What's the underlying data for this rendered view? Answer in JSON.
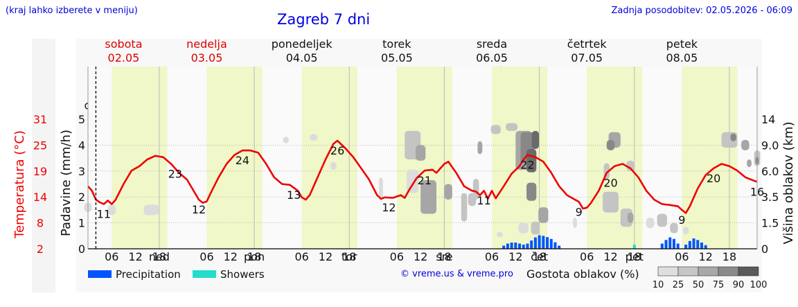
{
  "header": {
    "hint": "(kraj lahko izberete v meniju)",
    "title": "Zagreb 7 dni",
    "updated": "Zadnja posodobitev: 02.05.2026 - 06:09"
  },
  "credit": "© vreme.us & vreme.pro",
  "days": [
    {
      "name": "sobota",
      "date": "02.05",
      "weekend": true,
      "abbr": "",
      "icons": [
        "moon-cloud-icon",
        "sun-cloud-icon",
        "sun-cloud-icon"
      ]
    },
    {
      "name": "nedelja",
      "date": "03.05",
      "weekend": true,
      "abbr": "ned",
      "icons": [
        "moon-icon",
        "sun-cloud-icon",
        "sun-icon",
        "moon-icon"
      ]
    },
    {
      "name": "ponedeljek",
      "date": "04.05",
      "weekend": false,
      "abbr": "pon",
      "icons": [
        "moon-cloud-icon",
        "sun-cloud-icon",
        "sun-icon",
        "moon-icon"
      ]
    },
    {
      "name": "torek",
      "date": "05.05",
      "weekend": false,
      "abbr": "tor",
      "icons": [
        "cloud-icon",
        "sun-cloud-icon",
        "cloud-icon",
        "moon-cloud-icon"
      ]
    },
    {
      "name": "sreda",
      "date": "06.05",
      "weekend": false,
      "abbr": "sre",
      "icons": [
        "cloud-icon",
        "rain-cloud-icon",
        "rain-sun-cloud-icon",
        "rain-moon-cloud-icon"
      ]
    },
    {
      "name": "četrtek",
      "date": "07.05",
      "weekend": false,
      "abbr": "čet",
      "icons": [
        "moon-cloud-icon",
        "sun-cloud-icon",
        "thunder-icon",
        "rain-moon-cloud-icon"
      ]
    },
    {
      "name": "petek",
      "date": "08.05",
      "weekend": false,
      "abbr": "pet",
      "icons": [
        "rain-moon-cloud-icon",
        "sun-cloud-icon",
        "moon-cloud-icon"
      ]
    }
  ],
  "hour_labels": [
    "06",
    "12",
    "18"
  ],
  "legend": {
    "precip": "Precipitation",
    "showers": "Showers",
    "cloud_title": "Gostota oblakov (%)",
    "cloud_levels": [
      "10",
      "25",
      "50",
      "75",
      "90",
      "100"
    ],
    "colors": {
      "precip": "#0055ff",
      "showers": "#22ddcc"
    }
  },
  "chart_data": {
    "type": "line",
    "temp_axis": {
      "label": "Temperatura (°C)",
      "ticks": [
        2,
        8,
        14,
        19,
        25,
        31
      ],
      "color": "#ee0000"
    },
    "precip_axis": {
      "label": "Padavine (mm/h)",
      "ticks": [
        0,
        1,
        2,
        3,
        4,
        5
      ],
      "range": [
        0,
        5
      ]
    },
    "cloud_axis": {
      "label": "Višina oblakov (km)",
      "ticks": [
        "0",
        "1.5",
        "3.5",
        "6.0",
        "9.0",
        "14"
      ]
    },
    "temperature_series": {
      "color": "#ee0000",
      "points": [
        [
          0,
          16
        ],
        [
          1,
          15
        ],
        [
          2,
          13
        ],
        [
          3,
          12.4
        ],
        [
          4,
          12
        ],
        [
          5,
          12.8
        ],
        [
          6,
          12
        ],
        [
          7,
          13
        ],
        [
          9,
          16.5
        ],
        [
          11,
          19.5
        ],
        [
          13,
          20.5
        ],
        [
          15,
          22
        ],
        [
          17,
          22.8
        ],
        [
          19,
          22.5
        ],
        [
          21,
          21
        ],
        [
          23,
          19
        ],
        [
          25,
          17.5
        ],
        [
          27,
          14.5
        ],
        [
          28,
          13
        ],
        [
          29,
          12.3
        ],
        [
          30,
          12.6
        ],
        [
          31,
          14.5
        ],
        [
          33,
          18
        ],
        [
          35,
          21
        ],
        [
          37,
          23
        ],
        [
          39,
          24
        ],
        [
          41,
          24
        ],
        [
          43,
          23.5
        ],
        [
          45,
          21
        ],
        [
          47,
          18
        ],
        [
          49,
          16.5
        ],
        [
          51,
          16.3
        ],
        [
          53,
          15
        ],
        [
          54,
          13.5
        ],
        [
          55,
          13
        ],
        [
          56,
          14
        ],
        [
          58,
          18
        ],
        [
          60,
          22
        ],
        [
          62,
          25.5
        ],
        [
          63,
          26.2
        ],
        [
          65,
          24.5
        ],
        [
          67,
          22.5
        ],
        [
          69,
          20
        ],
        [
          71,
          17.5
        ],
        [
          73,
          14
        ],
        [
          74,
          13.2
        ],
        [
          75,
          13.5
        ],
        [
          77,
          13.4
        ],
        [
          79,
          14
        ],
        [
          80,
          13.4
        ],
        [
          81,
          15
        ],
        [
          83,
          17.8
        ],
        [
          85,
          19.5
        ],
        [
          87,
          19.7
        ],
        [
          88,
          19
        ],
        [
          89,
          20
        ],
        [
          90,
          21
        ],
        [
          91,
          21.5
        ],
        [
          93,
          19
        ],
        [
          95,
          16
        ],
        [
          97,
          15
        ],
        [
          98,
          14.8
        ],
        [
          99,
          14
        ],
        [
          100,
          15
        ],
        [
          101,
          13.2
        ],
        [
          102,
          15
        ],
        [
          103,
          13.3
        ],
        [
          105,
          16
        ],
        [
          107,
          18.8
        ],
        [
          109,
          20.5
        ],
        [
          110,
          22
        ],
        [
          111,
          23
        ],
        [
          113,
          22.5
        ],
        [
          115,
          21.5
        ],
        [
          117,
          19
        ],
        [
          119,
          16
        ],
        [
          121,
          14
        ],
        [
          123,
          13
        ],
        [
          124,
          12.5
        ],
        [
          125,
          11
        ],
        [
          126,
          11.2
        ],
        [
          127,
          12.2
        ],
        [
          129,
          15
        ],
        [
          131,
          19
        ],
        [
          133,
          20.5
        ],
        [
          135,
          21
        ],
        [
          137,
          20
        ],
        [
          139,
          18
        ],
        [
          141,
          15
        ],
        [
          143,
          13
        ],
        [
          145,
          12
        ],
        [
          147,
          11.8
        ],
        [
          149,
          11.5
        ],
        [
          150,
          10.7
        ],
        [
          151,
          10
        ],
        [
          152,
          11.5
        ],
        [
          154,
          15.5
        ],
        [
          156,
          18.5
        ],
        [
          158,
          20
        ],
        [
          160,
          21
        ],
        [
          162,
          20.5
        ],
        [
          164,
          19.5
        ],
        [
          166,
          18
        ],
        [
          168,
          17.3
        ],
        [
          169,
          17
        ]
      ]
    },
    "temp_labels": [
      [
        4,
        "11"
      ],
      [
        28,
        "12"
      ],
      [
        22,
        "23"
      ],
      [
        39,
        "24"
      ],
      [
        52,
        "13"
      ],
      [
        63,
        "26"
      ],
      [
        76,
        "12"
      ],
      [
        85,
        "21"
      ],
      [
        100,
        "11"
      ],
      [
        111,
        "22"
      ],
      [
        124,
        "9"
      ],
      [
        132,
        "20"
      ],
      [
        150,
        "9"
      ],
      [
        158,
        "20"
      ],
      [
        169,
        "16"
      ]
    ],
    "precip_bars": [
      [
        105,
        0.12
      ],
      [
        106,
        0.2
      ],
      [
        107,
        0.24
      ],
      [
        108,
        0.24
      ],
      [
        109,
        0.2
      ],
      [
        110,
        0.16
      ],
      [
        111,
        0.2
      ],
      [
        112,
        0.32
      ],
      [
        113,
        0.44
      ],
      [
        114,
        0.52
      ],
      [
        115,
        0.5
      ],
      [
        116,
        0.45
      ],
      [
        117,
        0.38
      ],
      [
        118,
        0.25
      ],
      [
        119,
        0.12
      ],
      [
        145,
        0.2
      ],
      [
        146,
        0.34
      ],
      [
        147,
        0.44
      ],
      [
        148,
        0.38
      ],
      [
        149,
        0.2
      ],
      [
        151,
        0.16
      ],
      [
        152,
        0.3
      ],
      [
        153,
        0.4
      ],
      [
        154,
        0.34
      ],
      [
        155,
        0.24
      ],
      [
        156,
        0.14
      ]
    ],
    "shower_bars": [
      [
        138,
        0.16
      ]
    ],
    "cloud_blobs": [
      [
        0,
        1.6,
        2,
        0.35,
        1
      ],
      [
        6,
        1.5,
        2,
        0.4,
        1
      ],
      [
        16,
        1.5,
        3.8,
        0.4,
        1
      ],
      [
        50,
        4.2,
        1.5,
        0.25,
        1
      ],
      [
        57,
        4.3,
        2,
        0.25,
        1
      ],
      [
        62,
        3.2,
        1.5,
        0.3,
        1
      ],
      [
        74,
        2.3,
        1,
        0.9,
        1
      ],
      [
        82,
        2.6,
        3,
        0.9,
        1
      ],
      [
        82,
        4.0,
        4,
        1.1,
        2
      ],
      [
        95,
        1.6,
        1.5,
        1.1,
        2
      ],
      [
        86,
        2.0,
        4,
        1.3,
        3
      ],
      [
        84,
        3.7,
        2.5,
        0.6,
        3
      ],
      [
        91,
        2.2,
        2,
        0.6,
        3
      ],
      [
        97,
        1.9,
        2,
        0.5,
        2
      ],
      [
        99,
        3.9,
        1.2,
        0.5,
        3
      ],
      [
        98,
        2.3,
        1.5,
        0.8,
        2
      ],
      [
        123,
        1.0,
        1,
        0.4,
        1
      ],
      [
        103,
        4.6,
        2.5,
        0.35,
        2
      ],
      [
        107,
        4.7,
        3,
        0.3,
        2
      ],
      [
        110,
        3.8,
        4,
        1.5,
        3
      ],
      [
        111,
        3.9,
        3.5,
        1.2,
        4
      ],
      [
        112,
        3.4,
        2.5,
        0.9,
        5
      ],
      [
        113,
        4.2,
        1.8,
        0.7,
        5
      ],
      [
        112,
        2.2,
        2.5,
        0.7,
        4
      ],
      [
        115,
        1.3,
        2.5,
        0.6,
        3
      ],
      [
        113,
        0.8,
        2.2,
        0.5,
        2
      ],
      [
        110,
        0.8,
        2.5,
        0.4,
        1
      ],
      [
        104,
        0.55,
        1.5,
        0.2,
        1
      ],
      [
        133,
        4.2,
        3,
        0.6,
        3
      ],
      [
        132,
        4.0,
        2,
        0.4,
        4
      ],
      [
        137,
        3.2,
        2,
        0.4,
        2
      ],
      [
        131,
        3.0,
        1.5,
        0.6,
        2
      ],
      [
        132,
        1.8,
        4,
        0.8,
        2
      ],
      [
        136,
        1.2,
        3,
        0.7,
        2
      ],
      [
        137,
        1.2,
        1.5,
        0.4,
        3
      ],
      [
        145,
        1.1,
        2.5,
        0.5,
        2
      ],
      [
        142,
        1.0,
        2,
        0.4,
        1
      ],
      [
        148,
        0.8,
        2,
        0.4,
        2
      ],
      [
        151,
        0.7,
        1.5,
        0.3,
        1
      ],
      [
        162,
        4.2,
        4,
        0.6,
        2
      ],
      [
        166,
        4.0,
        2,
        0.4,
        3
      ],
      [
        163,
        4.3,
        1.5,
        0.3,
        4
      ],
      [
        169,
        3.5,
        1.5,
        0.6,
        2
      ],
      [
        167,
        3.3,
        1.2,
        0.3,
        3
      ],
      [
        169,
        3.4,
        0.8,
        0.3,
        4
      ]
    ],
    "wind_samples": [
      [
        0,
        "calm"
      ],
      [
        4,
        "calm"
      ],
      [
        8,
        "calm"
      ],
      [
        12,
        "calm"
      ],
      [
        16,
        "calm"
      ],
      [
        20,
        "calm"
      ],
      [
        24,
        "calm"
      ],
      [
        28,
        "calm"
      ],
      [
        32,
        "calm"
      ],
      [
        36,
        "calm"
      ],
      [
        40,
        "calm"
      ],
      [
        44,
        "calm"
      ],
      [
        48,
        "calm"
      ],
      [
        52,
        "calm"
      ],
      [
        56,
        "calm"
      ],
      [
        60,
        "calm"
      ],
      [
        64,
        "calm"
      ],
      [
        68,
        "calm"
      ],
      [
        72,
        "calm"
      ],
      [
        76,
        "calm"
      ],
      [
        80,
        "calm"
      ],
      [
        84,
        "calm"
      ],
      [
        88,
        "calm"
      ],
      [
        92,
        "calm"
      ],
      [
        96,
        "calm"
      ],
      [
        100,
        "calm"
      ],
      [
        104,
        "calm"
      ],
      [
        108,
        "calm"
      ],
      [
        112,
        "calm"
      ],
      [
        116,
        "calm"
      ],
      [
        120,
        "calm"
      ],
      [
        124,
        "calm"
      ],
      [
        128,
        "calm"
      ],
      [
        132,
        "calm"
      ],
      [
        136,
        "calm"
      ],
      [
        140,
        "calm"
      ],
      [
        144,
        "calm"
      ],
      [
        148,
        "calm"
      ],
      [
        152,
        "calm"
      ],
      [
        156,
        "calm"
      ],
      [
        160,
        "calm"
      ],
      [
        164,
        "calm"
      ],
      [
        168,
        "calm"
      ]
    ],
    "wind_barbs": [
      [
        11,
        75
      ],
      [
        14,
        80
      ],
      [
        17,
        78
      ],
      [
        20,
        80
      ],
      [
        23,
        70
      ],
      [
        32,
        -30
      ],
      [
        37,
        -60
      ],
      [
        40,
        -50
      ],
      [
        43,
        -60
      ],
      [
        59,
        40
      ],
      [
        61,
        45
      ],
      [
        65,
        40
      ],
      [
        68,
        65
      ],
      [
        71,
        70
      ],
      [
        74,
        55
      ],
      [
        77,
        75
      ],
      [
        79,
        40
      ],
      [
        82,
        40
      ],
      [
        85,
        35
      ],
      [
        88,
        35
      ],
      [
        91,
        40
      ],
      [
        102,
        -50
      ],
      [
        104,
        -70
      ],
      [
        108,
        50
      ],
      [
        110,
        60
      ],
      [
        112,
        30
      ],
      [
        116,
        40
      ],
      [
        133,
        45
      ],
      [
        135,
        40
      ],
      [
        138,
        40
      ],
      [
        141,
        35
      ],
      [
        157,
        40
      ],
      [
        160,
        55
      ]
    ]
  }
}
